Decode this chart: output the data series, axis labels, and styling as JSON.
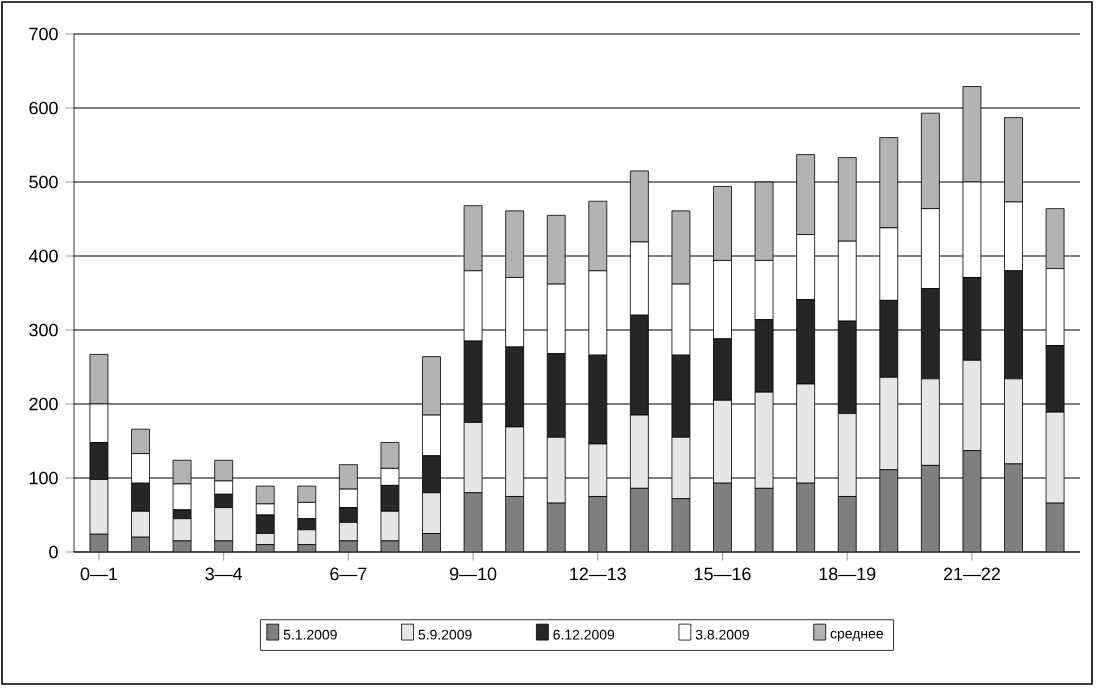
{
  "chart_data": {
    "type": "bar",
    "stacked": true,
    "categories": [
      "0—1",
      null,
      null,
      "3—4",
      null,
      null,
      "6—7",
      null,
      null,
      "9—10",
      null,
      null,
      "12—13",
      null,
      null,
      "15—16",
      null,
      null,
      "18—19",
      null,
      null,
      "21—22",
      null,
      null
    ],
    "series": [
      {
        "name": "5.1.2009",
        "color": "#7f7f7f",
        "values": [
          24,
          20,
          15,
          15,
          10,
          10,
          15,
          15,
          25,
          80,
          75,
          66,
          75,
          86,
          72,
          93,
          86,
          93,
          75,
          111,
          117,
          137,
          119,
          66
        ]
      },
      {
        "name": "5.9.2009",
        "color": "#e6e6e6",
        "values": [
          74,
          35,
          30,
          45,
          15,
          20,
          25,
          40,
          55,
          95,
          94,
          89,
          71,
          99,
          83,
          112,
          130,
          134,
          112,
          125,
          117,
          122,
          115,
          123
        ]
      },
      {
        "name": "6.12.2009",
        "color": "#262626",
        "values": [
          50,
          38,
          12,
          18,
          25,
          15,
          20,
          35,
          50,
          110,
          108,
          113,
          120,
          135,
          111,
          83,
          98,
          114,
          125,
          104,
          122,
          112,
          146,
          90
        ]
      },
      {
        "name": "3.8.2009",
        "color": "#ffffff",
        "values": [
          52,
          40,
          35,
          18,
          15,
          22,
          25,
          23,
          55,
          95,
          94,
          94,
          114,
          99,
          96,
          106,
          80,
          88,
          108,
          98,
          108,
          129,
          93,
          104
        ]
      },
      {
        "name": "среднее",
        "color": "#b3b3b3",
        "values": [
          67,
          33,
          32,
          28,
          24,
          22,
          33,
          35,
          79,
          88,
          90,
          93,
          94,
          96,
          99,
          100,
          106,
          108,
          113,
          122,
          129,
          129,
          114,
          81
        ]
      }
    ],
    "ylim": [
      0,
      700
    ],
    "yticks": [
      0,
      100,
      200,
      300,
      400,
      500,
      600,
      700
    ],
    "grid": "y",
    "legend": "bottom"
  }
}
